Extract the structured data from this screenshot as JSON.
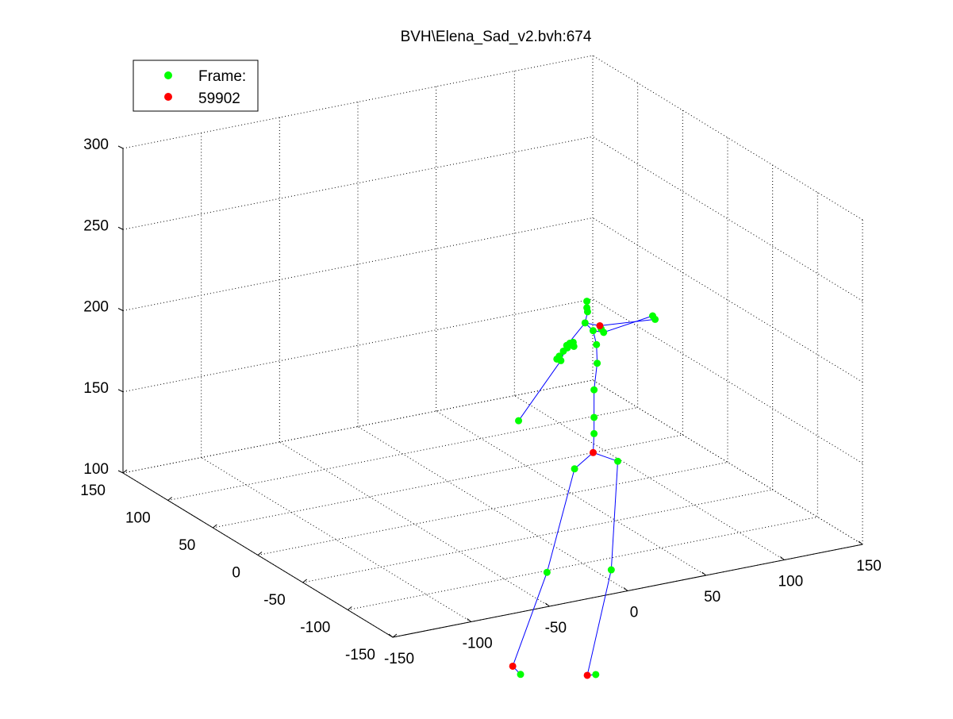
{
  "window": {
    "title": "BVH\\Elena_Sad_v2.bvh:674"
  },
  "legend": {
    "placement": "top-left",
    "entries": [
      {
        "label": "Frame:",
        "color": "#00ff00",
        "marker": "dot"
      },
      {
        "label": "59902",
        "color": "#ff0000",
        "marker": "dot"
      }
    ]
  },
  "chart_data": {
    "type": "scatter",
    "projection": "3d",
    "title": "BVH\\Elena_Sad_v2.bvh:674",
    "xlim": [
      -150,
      150
    ],
    "ylim": [
      -150,
      150
    ],
    "zlim": [
      100,
      300
    ],
    "x_ticks": [
      -150,
      -100,
      -50,
      0,
      50,
      100,
      150
    ],
    "y_ticks": [
      -150,
      -100,
      -50,
      0,
      50,
      100,
      150
    ],
    "z_ticks": [
      100,
      150,
      200,
      250,
      300
    ],
    "grid": true,
    "colors": {
      "joint": "#00ff00",
      "root_joint": "#ff0000",
      "bone": "#0000ff"
    },
    "series": [
      {
        "name": "Frame:",
        "color": "#00ff00",
        "points": [
          {
            "x": 40,
            "y": -35,
            "z": 228
          },
          {
            "x": 40,
            "y": -35,
            "z": 232
          },
          {
            "x": 41,
            "y": -34,
            "z": 225
          },
          {
            "x": 40,
            "y": -33,
            "z": 218
          },
          {
            "x": 30,
            "y": -30,
            "z": 205
          },
          {
            "x": 32,
            "y": -30,
            "z": 206
          },
          {
            "x": 34,
            "y": -31,
            "z": 204
          },
          {
            "x": 33,
            "y": -32,
            "z": 207
          },
          {
            "x": 31,
            "y": -29,
            "z": 203
          },
          {
            "x": 29,
            "y": -28,
            "z": 201
          },
          {
            "x": 27,
            "y": -27,
            "z": 198
          },
          {
            "x": 26,
            "y": -26,
            "z": 196
          },
          {
            "x": 28,
            "y": -27,
            "z": 195
          },
          {
            "x": 5,
            "y": -20,
            "z": 160
          },
          {
            "x": 48,
            "y": -28,
            "z": 210
          },
          {
            "x": 52,
            "y": -30,
            "z": 211
          },
          {
            "x": 53,
            "y": -31,
            "z": 209
          },
          {
            "x": 82,
            "y": -35,
            "z": 215
          },
          {
            "x": 83,
            "y": -36,
            "z": 213
          },
          {
            "x": 45,
            "y": -37,
            "z": 205
          },
          {
            "x": 46,
            "y": -36,
            "z": 193
          },
          {
            "x": 44,
            "y": -36,
            "z": 177
          },
          {
            "x": 44,
            "y": -36,
            "z": 160
          },
          {
            "x": 44,
            "y": -36,
            "z": 150
          },
          {
            "x": 35,
            "y": -30,
            "z": 128
          },
          {
            "x": 58,
            "y": -38,
            "z": 131
          },
          {
            "x": 22,
            "y": -22,
            "z": 64
          },
          {
            "x": 55,
            "y": -36,
            "z": 64
          },
          {
            "x": 12,
            "y": -10,
            "z": -1
          },
          {
            "x": 52,
            "y": -24,
            "z": -4
          }
        ]
      },
      {
        "name": "59902",
        "color": "#ff0000",
        "points": [
          {
            "x": 50,
            "y": -32,
            "z": 214
          },
          {
            "x": 44,
            "y": -35,
            "z": 138
          },
          {
            "x": 7,
            "y": -10,
            "z": 5
          },
          {
            "x": 46,
            "y": -25,
            "z": -3
          }
        ]
      }
    ],
    "bones": [
      [
        [
          40,
          -35,
          232
        ],
        [
          41,
          -34,
          225
        ]
      ],
      [
        [
          41,
          -34,
          225
        ],
        [
          40,
          -33,
          218
        ]
      ],
      [
        [
          40,
          -33,
          218
        ],
        [
          50,
          -32,
          214
        ]
      ],
      [
        [
          40,
          -33,
          218
        ],
        [
          30,
          -30,
          205
        ]
      ],
      [
        [
          30,
          -30,
          205
        ],
        [
          28,
          -27,
          195
        ]
      ],
      [
        [
          28,
          -27,
          195
        ],
        [
          5,
          -20,
          160
        ]
      ],
      [
        [
          40,
          -33,
          218
        ],
        [
          48,
          -28,
          210
        ]
      ],
      [
        [
          48,
          -28,
          210
        ],
        [
          53,
          -31,
          209
        ]
      ],
      [
        [
          53,
          -31,
          209
        ],
        [
          82,
          -35,
          215
        ]
      ],
      [
        [
          50,
          -32,
          214
        ],
        [
          83,
          -36,
          213
        ]
      ],
      [
        [
          48,
          -28,
          210
        ],
        [
          45,
          -37,
          205
        ]
      ],
      [
        [
          45,
          -37,
          205
        ],
        [
          46,
          -36,
          193
        ]
      ],
      [
        [
          46,
          -36,
          193
        ],
        [
          44,
          -36,
          177
        ]
      ],
      [
        [
          44,
          -36,
          177
        ],
        [
          44,
          -36,
          160
        ]
      ],
      [
        [
          44,
          -36,
          160
        ],
        [
          44,
          -36,
          150
        ]
      ],
      [
        [
          44,
          -36,
          150
        ],
        [
          44,
          -35,
          138
        ]
      ],
      [
        [
          44,
          -35,
          138
        ],
        [
          35,
          -30,
          128
        ]
      ],
      [
        [
          44,
          -35,
          138
        ],
        [
          58,
          -38,
          131
        ]
      ],
      [
        [
          35,
          -30,
          128
        ],
        [
          22,
          -22,
          64
        ]
      ],
      [
        [
          22,
          -22,
          64
        ],
        [
          7,
          -10,
          5
        ]
      ],
      [
        [
          7,
          -10,
          5
        ],
        [
          12,
          -10,
          -1
        ]
      ],
      [
        [
          58,
          -38,
          131
        ],
        [
          55,
          -36,
          64
        ]
      ],
      [
        [
          55,
          -36,
          64
        ],
        [
          46,
          -25,
          -3
        ]
      ],
      [
        [
          46,
          -25,
          -3
        ],
        [
          52,
          -24,
          -4
        ]
      ]
    ]
  }
}
